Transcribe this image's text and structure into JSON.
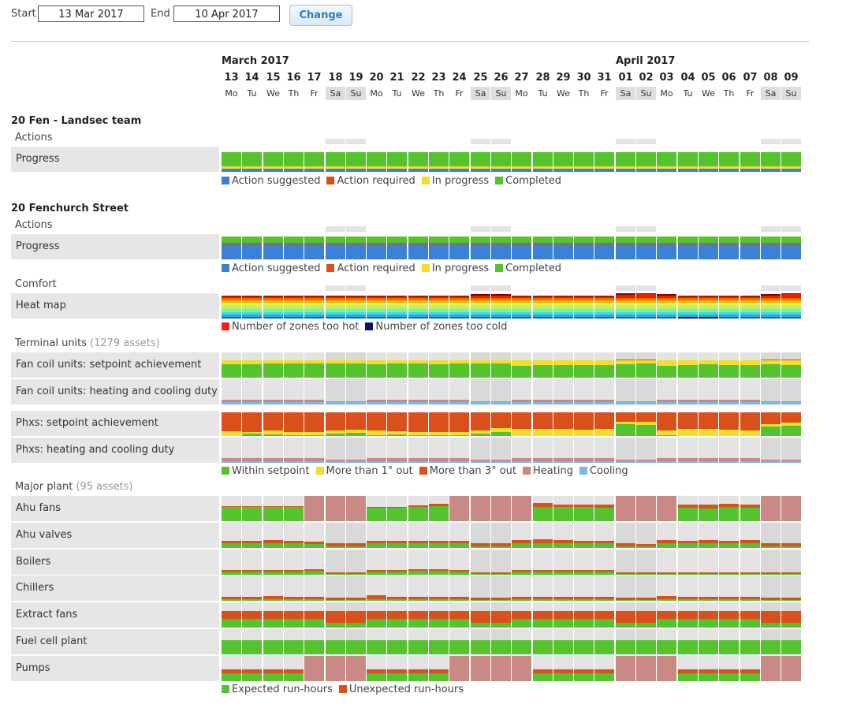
{
  "controls": {
    "start_label": "Start",
    "start_value": "13 Mar 2017",
    "end_label": "End",
    "end_value": "10 Apr 2017",
    "change_label": "Change"
  },
  "calendar": {
    "months": [
      {
        "label": "March 2017",
        "start_index": 0
      },
      {
        "label": "April 2017",
        "start_index": 19
      }
    ],
    "days": [
      {
        "n": "13",
        "d": "Mo"
      },
      {
        "n": "14",
        "d": "Tu"
      },
      {
        "n": "15",
        "d": "We"
      },
      {
        "n": "16",
        "d": "Th"
      },
      {
        "n": "17",
        "d": "Fr"
      },
      {
        "n": "18",
        "d": "Sa"
      },
      {
        "n": "19",
        "d": "Su"
      },
      {
        "n": "20",
        "d": "Mo"
      },
      {
        "n": "21",
        "d": "Tu"
      },
      {
        "n": "22",
        "d": "We"
      },
      {
        "n": "23",
        "d": "Th"
      },
      {
        "n": "24",
        "d": "Fr"
      },
      {
        "n": "25",
        "d": "Sa"
      },
      {
        "n": "26",
        "d": "Su"
      },
      {
        "n": "27",
        "d": "Mo"
      },
      {
        "n": "28",
        "d": "Tu"
      },
      {
        "n": "29",
        "d": "We"
      },
      {
        "n": "30",
        "d": "Th"
      },
      {
        "n": "31",
        "d": "Fr"
      },
      {
        "n": "01",
        "d": "Sa"
      },
      {
        "n": "02",
        "d": "Su"
      },
      {
        "n": "03",
        "d": "Mo"
      },
      {
        "n": "04",
        "d": "Tu"
      },
      {
        "n": "05",
        "d": "We"
      },
      {
        "n": "06",
        "d": "Th"
      },
      {
        "n": "07",
        "d": "Fr"
      },
      {
        "n": "08",
        "d": "Sa"
      },
      {
        "n": "09",
        "d": "Su"
      }
    ],
    "weekend_indices": [
      5,
      6,
      12,
      13,
      19,
      20,
      26,
      27
    ]
  },
  "colors": {
    "action_suggested": "#3b82d6",
    "action_required": "#d9501c",
    "in_progress": "#f2de2a",
    "completed": "#55c32e",
    "too_hot": "#ff1a1a",
    "too_cold": "#10106e",
    "within_setpoint": "#55c32e",
    "more_than_1": "#f2de2a",
    "more_than_3": "#d9501c",
    "heating": "#c98a86",
    "cooling": "#82b4e2",
    "expected": "#55c32e",
    "unexpected": "#d9501c",
    "cell_bg": "#e3e3e3",
    "weekend_cell_bg": "#d9d9d9"
  },
  "sections": [
    {
      "title": "20 Fen - Landsec team",
      "groups": [
        {
          "label": "Actions",
          "assets": "",
          "rows": [
            {
              "label": "Progress",
              "kind": "progress_a"
            }
          ],
          "legend": [
            {
              "label": "Action suggested",
              "color": "#3b82d6"
            },
            {
              "label": "Action required",
              "color": "#d9501c"
            },
            {
              "label": "In progress",
              "color": "#f2de2a"
            },
            {
              "label": "Completed",
              "color": "#55c32e"
            }
          ]
        }
      ]
    },
    {
      "title": "20 Fenchurch Street",
      "groups": [
        {
          "label": "Actions",
          "assets": "",
          "rows": [
            {
              "label": "Progress",
              "kind": "progress_b"
            }
          ],
          "legend": [
            {
              "label": "Action suggested",
              "color": "#3b82d6"
            },
            {
              "label": "Action required",
              "color": "#d9501c"
            },
            {
              "label": "In progress",
              "color": "#f2de2a"
            },
            {
              "label": "Completed",
              "color": "#55c32e"
            }
          ]
        },
        {
          "label": "Comfort",
          "assets": "",
          "rows": [
            {
              "label": "Heat map",
              "kind": "heatmap"
            }
          ],
          "legend": [
            {
              "label": "Number of zones too hot",
              "color": "#ff1a1a"
            },
            {
              "label": "Number of zones too cold",
              "color": "#10106e"
            }
          ]
        },
        {
          "label": "Terminal units",
          "assets": "(1279 assets)",
          "rows": [
            {
              "label": "Fan coil units: setpoint achievement",
              "kind": "fcu_setpoint"
            },
            {
              "label": "Fan coil units: heating and cooling duty",
              "kind": "fcu_duty"
            },
            {
              "label": "Phxs: setpoint achievement",
              "kind": "phx_setpoint"
            },
            {
              "label": "Phxs: heating and cooling duty",
              "kind": "phx_duty"
            }
          ],
          "legend": [
            {
              "label": "Within setpoint",
              "color": "#55c32e"
            },
            {
              "label": "More than 1° out",
              "color": "#f2de2a"
            },
            {
              "label": "More than 3° out",
              "color": "#d9501c"
            },
            {
              "label": "Heating",
              "color": "#c98a86"
            },
            {
              "label": "Cooling",
              "color": "#82b4e2"
            }
          ]
        },
        {
          "label": "Major plant",
          "assets": "(95 assets)",
          "rows": [
            {
              "label": "Ahu fans",
              "kind": "ahu_fans"
            },
            {
              "label": "Ahu valves",
              "kind": "small_plant"
            },
            {
              "label": "Boilers",
              "kind": "boilers"
            },
            {
              "label": "Chillers",
              "kind": "chillers"
            },
            {
              "label": "Extract fans",
              "kind": "extract"
            },
            {
              "label": "Fuel cell plant",
              "kind": "fuelcell"
            },
            {
              "label": "Pumps",
              "kind": "pumps"
            }
          ],
          "legend": [
            {
              "label": "Expected run-hours",
              "color": "#55c32e"
            },
            {
              "label": "Unexpected run-hours",
              "color": "#d9501c"
            }
          ]
        }
      ]
    }
  ]
}
